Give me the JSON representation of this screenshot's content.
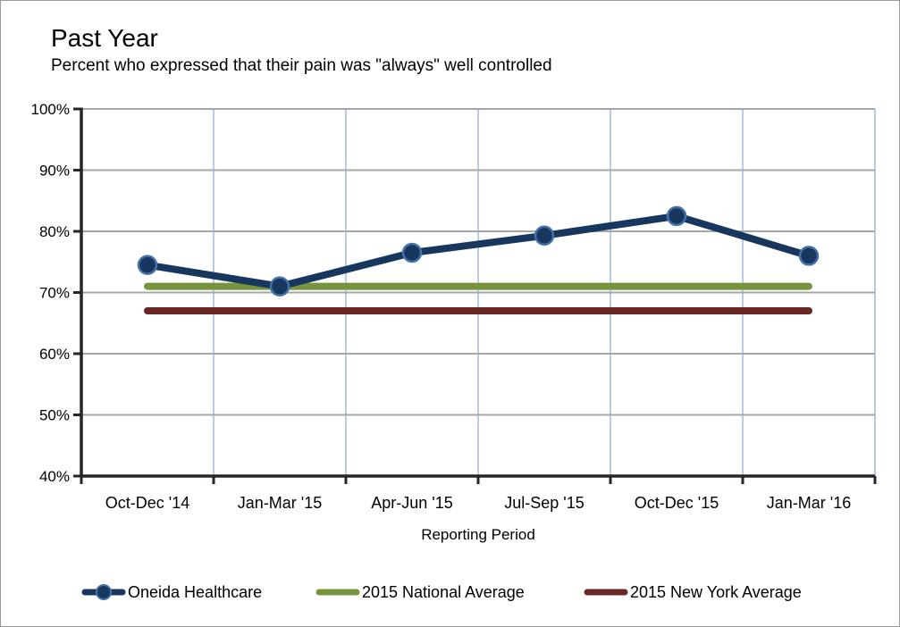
{
  "window": {
    "background": "#ffffff",
    "border_color": "#9a9a9a"
  },
  "chart_data": {
    "type": "line",
    "title": "Past Year",
    "subtitle": "Percent who expressed that their pain was \"always\" well controlled",
    "xlabel": "Reporting Period",
    "categories": [
      "Oct-Dec '14",
      "Jan-Mar '15",
      "Apr-Jun '15",
      "Jul-Sep '15",
      "Oct-Dec '15",
      "Jan-Mar '16"
    ],
    "series": [
      {
        "name": "Oneida Healthcare",
        "values": [
          74.5,
          71,
          76.5,
          79.3,
          82.5,
          76
        ],
        "color": "#17375E",
        "marker": "circle",
        "marker_border": "#4472A8"
      },
      {
        "name": "2015 National Average",
        "values": [
          71,
          71,
          71,
          71,
          71,
          71
        ],
        "color": "#77933C",
        "marker": "none"
      },
      {
        "name": "2015 New York Average",
        "values": [
          67,
          67,
          67,
          67,
          67,
          67
        ],
        "color": "#6A2726",
        "marker": "none"
      }
    ],
    "ylim": [
      40,
      100
    ],
    "ytick_step": 10,
    "ytick_labels": [
      "40%",
      "50%",
      "60%",
      "70%",
      "80%",
      "90%",
      "100%"
    ],
    "ytick_format": "percent",
    "grid": {
      "horizontal_color": "#A6A6A6",
      "vertical_color": "#B8CCE4",
      "horizontal": true,
      "vertical": true
    },
    "axis_color": "#262626",
    "legend_position": "bottom"
  }
}
